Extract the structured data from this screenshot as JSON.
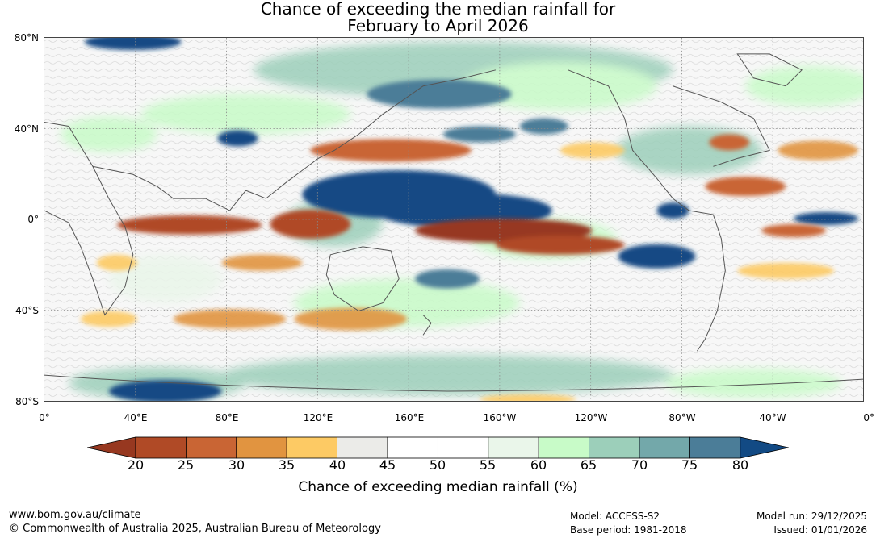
{
  "title": {
    "line1": "Chance of exceeding the median rainfall for",
    "line2": "February to April 2026"
  },
  "lat_labels": [
    "80°N",
    "40°N",
    "0°",
    "40°S",
    "80°S"
  ],
  "lon_labels": [
    "0°",
    "40°E",
    "80°E",
    "120°E",
    "160°E",
    "160°W",
    "120°W",
    "80°W",
    "40°W",
    "0°"
  ],
  "colorbar": {
    "ticks": [
      "20",
      "25",
      "30",
      "35",
      "40",
      "45",
      "50",
      "55",
      "60",
      "65",
      "70",
      "75",
      "80"
    ],
    "colors": [
      "#973820",
      "#b04a26",
      "#c96534",
      "#e19440",
      "#fdca64",
      "#ebebe8",
      "#ffffff",
      "#ffffff",
      "#eaf6ea",
      "#c8fbc8",
      "#9ccfba",
      "#73a8aa",
      "#4b7d98",
      "#124a84"
    ],
    "label": "Chance of exceeding median rainfall (%)"
  },
  "footer": {
    "website": "www.bom.gov.au/climate",
    "copyright": "© Commonwealth of Australia 2025, Australian Bureau of Meteorology",
    "model": "Model: ACCESS-S2",
    "base_period": "Base period: 1981-2018",
    "model_run": "Model run: 29/12/2025",
    "issued": "Issued: 01/01/2026"
  }
}
